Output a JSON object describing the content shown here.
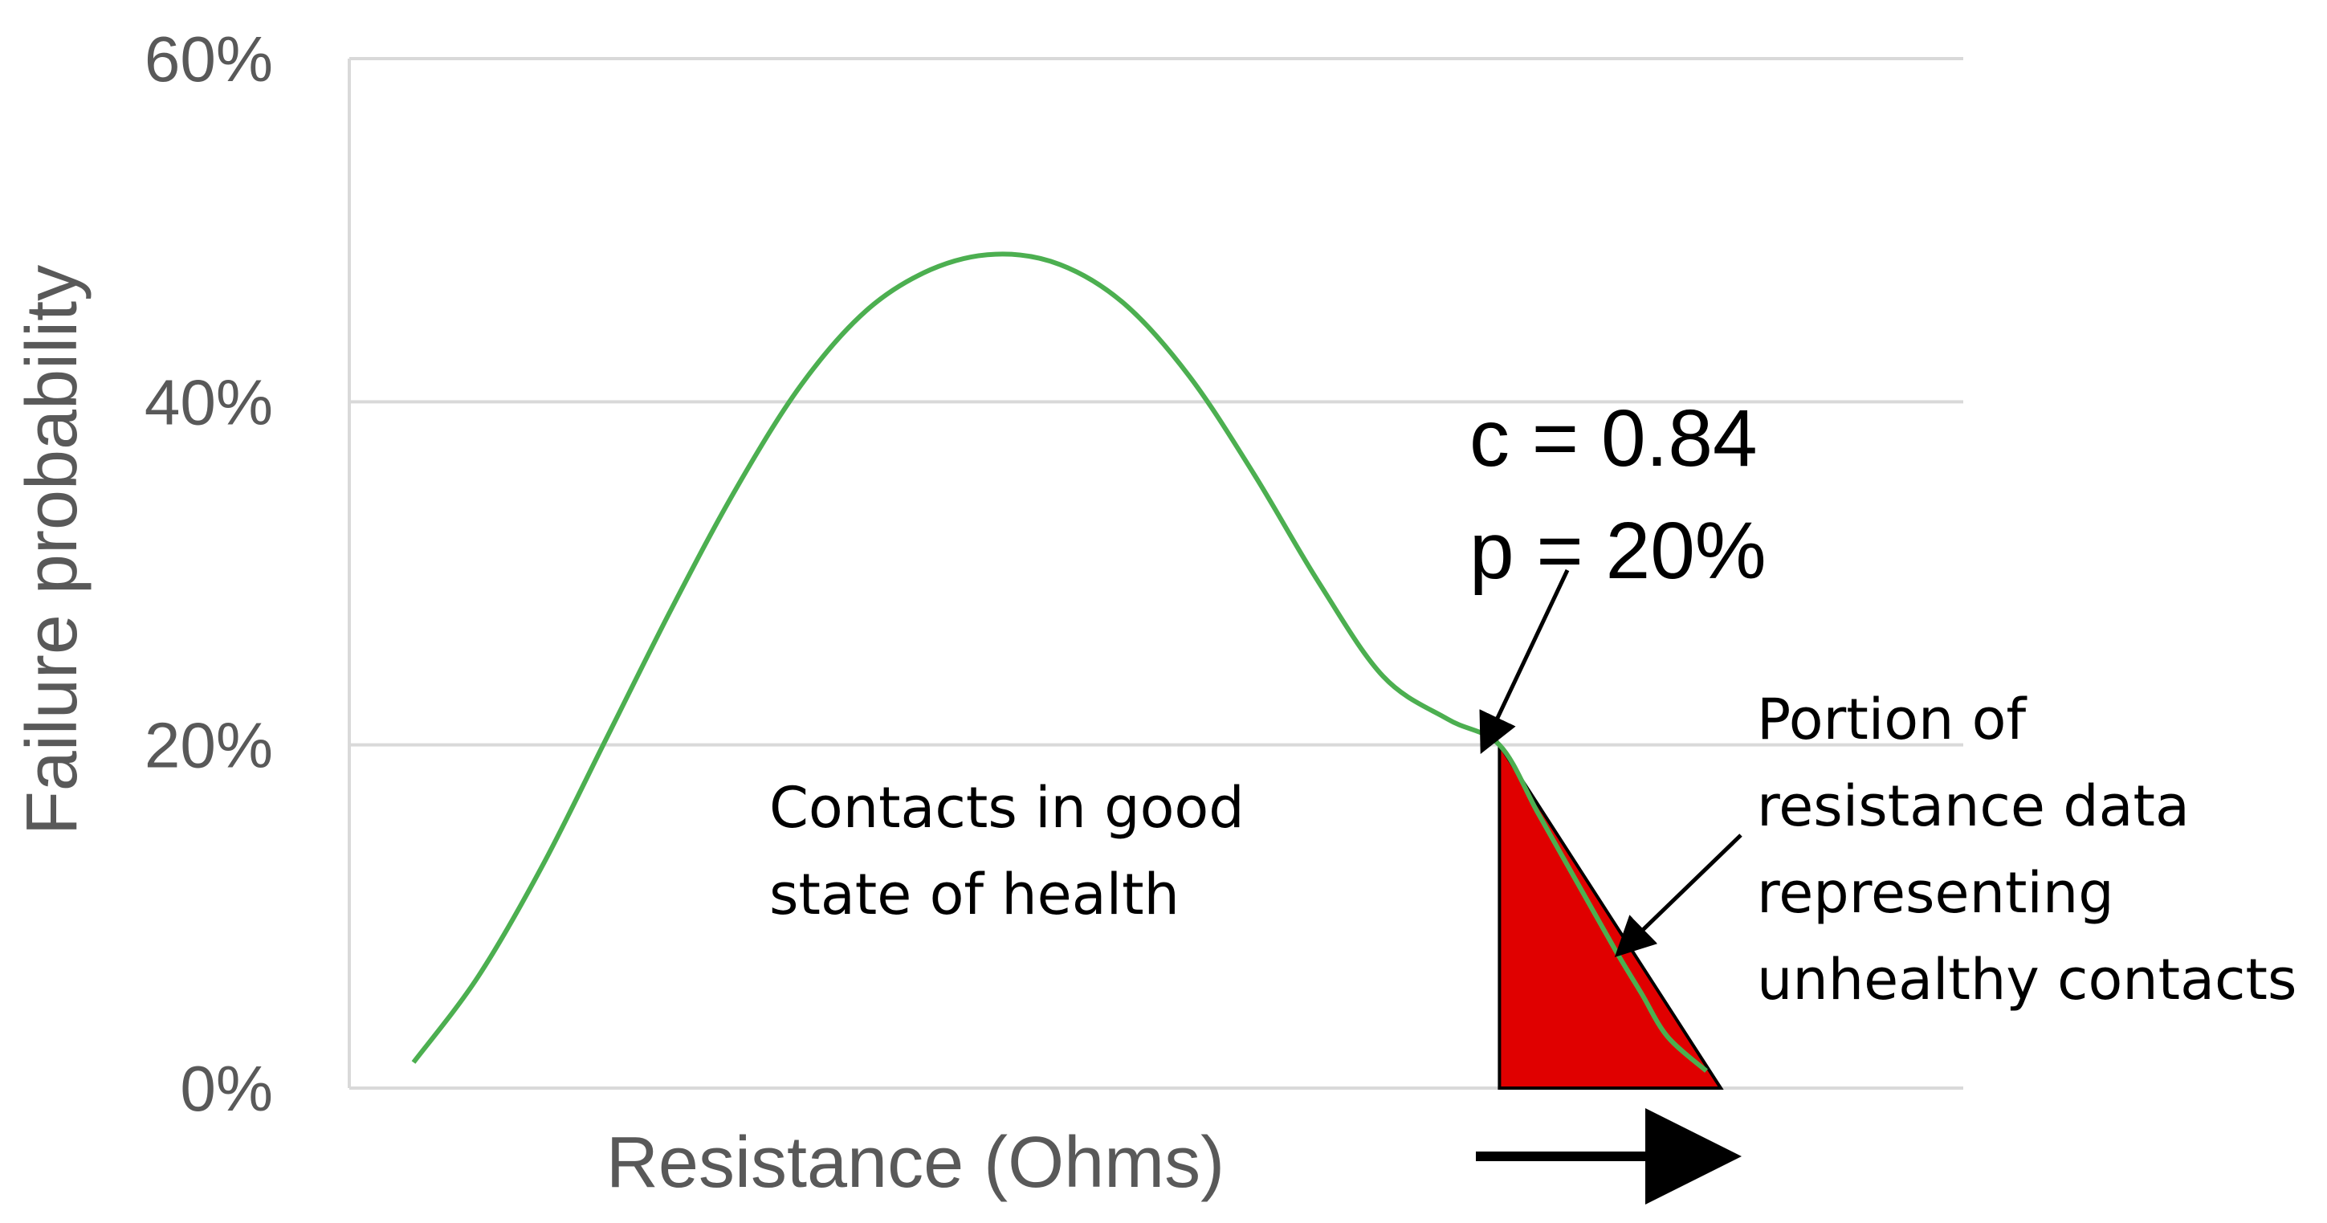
{
  "chart_data": {
    "type": "line",
    "title": "",
    "xlabel": "Resistance (Ohms)",
    "ylabel": "Failure probability",
    "ylim": [
      0,
      60
    ],
    "y_ticks": [
      "0%",
      "20%",
      "40%",
      "60%"
    ],
    "y_tick_values": [
      0,
      20,
      40,
      60
    ],
    "grid": true,
    "legend": "none",
    "series": [
      {
        "color": "#4caf50",
        "shape": "normal-curve",
        "x": [
          0.0,
          0.05,
          0.1,
          0.15,
          0.2,
          0.25,
          0.3,
          0.35,
          0.4,
          0.45,
          0.5,
          0.55,
          0.6,
          0.65,
          0.7,
          0.75,
          0.8,
          0.84,
          0.87,
          0.9,
          0.93,
          0.95,
          0.97,
          1.0
        ],
        "values": [
          1.5,
          6.5,
          13,
          20.5,
          28,
          35,
          41,
          45.3,
          47.7,
          48.6,
          48.0,
          45.7,
          41.5,
          35.8,
          29.5,
          24.0,
          21.5,
          20,
          16,
          12,
          8,
          5.5,
          3.0,
          1.0
        ]
      }
    ],
    "shaded_region": {
      "color": "#e00000",
      "x_start": 0.84,
      "x_end": 1.0,
      "y_top": 20
    },
    "annotations": {
      "c_label": "c = 0.84",
      "p_label": "p = 20%",
      "good_line1": "Contacts in good",
      "good_line2": "state of health",
      "portion_line1": "Portion of",
      "portion_line2": "resistance data",
      "portion_line3": "representing",
      "portion_line4": "unhealthy contacts"
    }
  }
}
